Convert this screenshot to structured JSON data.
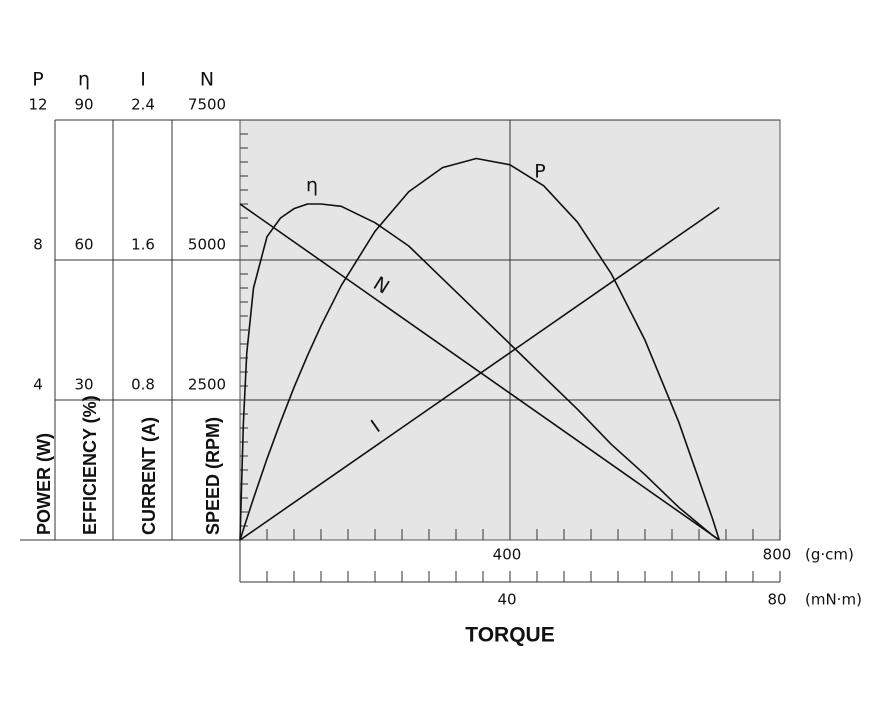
{
  "chart_data": {
    "type": "line",
    "title": "TORQUE",
    "x_axes": [
      {
        "unit": "(g·cm)",
        "xlim": [
          0,
          800
        ],
        "xticks": [
          400,
          800
        ],
        "minor_ticks": [
          40,
          80,
          120,
          160,
          200,
          240,
          280,
          320,
          360,
          440,
          480,
          520,
          560,
          600,
          640,
          680,
          720,
          760
        ]
      },
      {
        "unit": "(mN·m)",
        "xlim": [
          0,
          80
        ],
        "xticks": [
          40,
          80
        ],
        "minor_ticks": [
          4,
          8,
          12,
          16,
          20,
          24,
          28,
          32,
          36,
          44,
          48,
          52,
          56,
          60,
          64,
          68,
          72,
          76
        ]
      }
    ],
    "y_axes": [
      {
        "symbol": "P",
        "label": "POWER (W)",
        "ylim": [
          0,
          12
        ],
        "yticks": [
          4,
          8,
          12
        ]
      },
      {
        "symbol": "η",
        "label": "EFFICIENCY (%)",
        "ylim": [
          0,
          90
        ],
        "yticks": [
          30,
          60,
          90
        ]
      },
      {
        "symbol": "I",
        "label": "CURRENT (A)",
        "ylim": [
          0,
          2.4
        ],
        "yticks": [
          0.8,
          1.6,
          2.4
        ]
      },
      {
        "symbol": "N",
        "label": "SPEED (RPM)",
        "ylim": [
          0,
          7500
        ],
        "yticks": [
          2500,
          5000,
          7500
        ]
      }
    ],
    "grid": true,
    "series": [
      {
        "name": "P",
        "axis": "P",
        "color": "#111111",
        "x": [
          0,
          5,
          10,
          20,
          40,
          60,
          80,
          100,
          120,
          150,
          200,
          250,
          300,
          350,
          400,
          450,
          500,
          550,
          600,
          650,
          700,
          710
        ],
        "values": [
          0,
          0.3,
          0.6,
          1.19,
          2.32,
          3.37,
          4.36,
          5.27,
          6.12,
          7.27,
          8.82,
          9.95,
          10.64,
          10.9,
          10.72,
          10.12,
          9.08,
          7.61,
          5.71,
          3.37,
          0.61,
          0
        ]
      },
      {
        "name": "η",
        "axis": "η",
        "color": "#111111",
        "x": [
          0,
          5,
          10,
          20,
          40,
          60,
          80,
          100,
          120,
          150,
          200,
          250,
          300,
          350,
          400,
          450,
          500,
          550,
          600,
          650,
          700,
          710
        ],
        "values": [
          0,
          25,
          40,
          54,
          65,
          69,
          71,
          72,
          72,
          71.5,
          68,
          63,
          56,
          49,
          42,
          35,
          28,
          20.5,
          14,
          7,
          1,
          0
        ]
      },
      {
        "name": "N",
        "axis": "N",
        "color": "#111111",
        "x": [
          0,
          710
        ],
        "values": [
          6000,
          0
        ]
      },
      {
        "name": "I",
        "axis": "I",
        "color": "#111111",
        "x": [
          0,
          710
        ],
        "values": [
          0,
          1.9
        ]
      }
    ]
  }
}
